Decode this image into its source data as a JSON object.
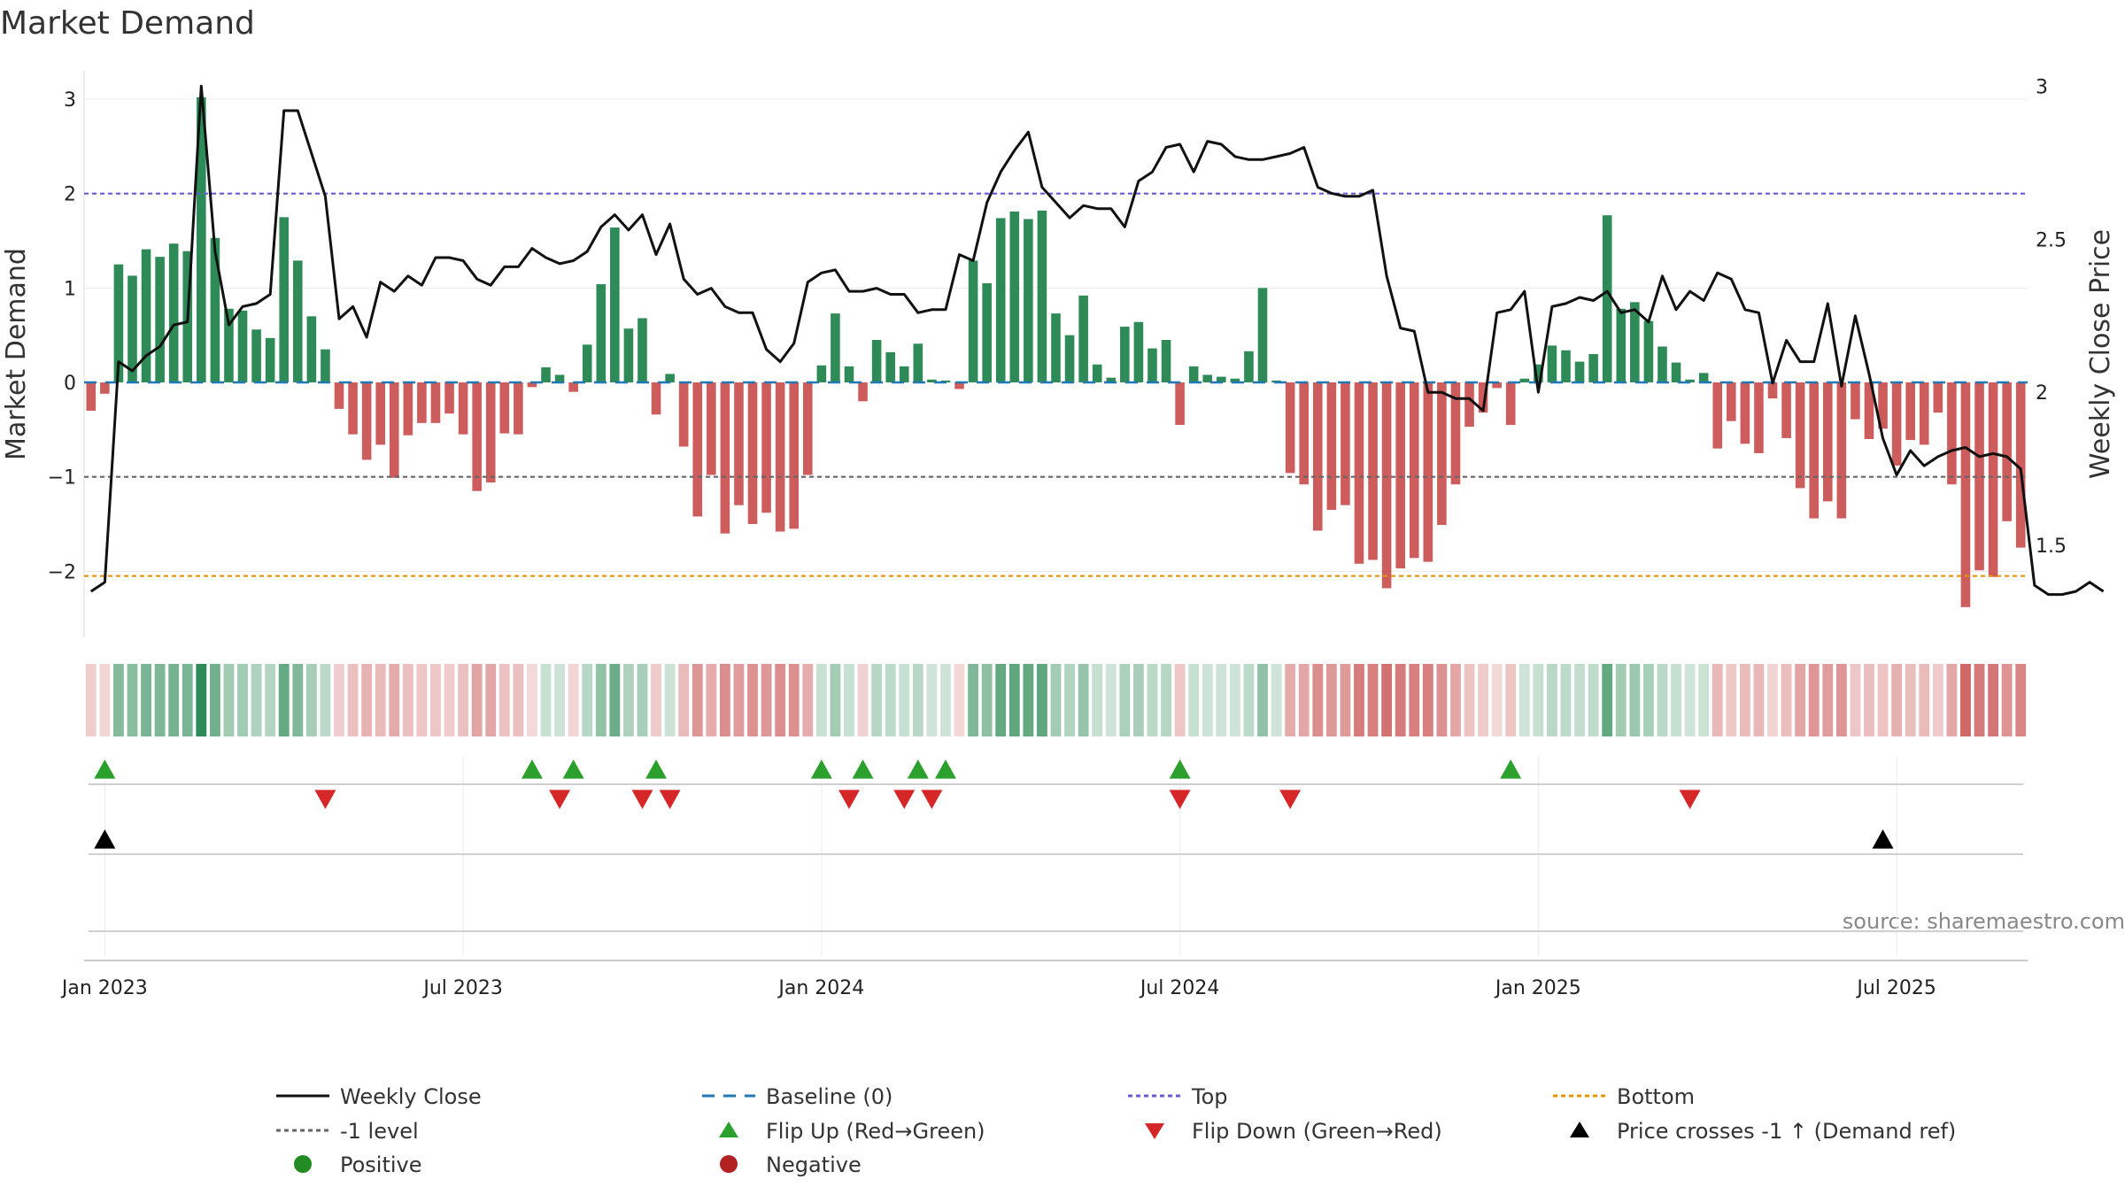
{
  "chart_data": {
    "type": "bar+line",
    "title": "Market Demand",
    "ylabel": "Market Demand",
    "y2label": "Weekly Close Price",
    "ylim": [
      -2.7,
      3.3
    ],
    "y2lim": [
      1.2,
      3.05
    ],
    "yticks": [
      -2,
      -1,
      0,
      1,
      2,
      3
    ],
    "y2ticks": [
      1.5,
      2,
      2.5,
      3
    ],
    "ytick_labels": [
      "−2",
      "−1",
      "0",
      "1",
      "2",
      "3"
    ],
    "y2tick_labels": [
      "1.5",
      "2",
      "2.5",
      "3"
    ],
    "xtick_labels": [
      "Jan 2023",
      "Jul 2023",
      "Jan 2024",
      "Jul 2024",
      "Jan 2025",
      "Jul 2025"
    ],
    "xtick_weeks": [
      1,
      27,
      53,
      79,
      105,
      131
    ],
    "reference_lines": {
      "top": 2.0,
      "minus_one": -1.0,
      "bottom": -2.05,
      "baseline": 0
    },
    "demand": [
      -0.3,
      -0.12,
      1.25,
      1.13,
      1.41,
      1.33,
      1.47,
      1.39,
      3.02,
      1.53,
      0.78,
      0.76,
      0.56,
      0.47,
      1.75,
      1.29,
      0.7,
      0.35,
      -0.28,
      -0.55,
      -0.82,
      -0.66,
      -1.01,
      -0.56,
      -0.43,
      -0.43,
      -0.33,
      -0.55,
      -1.15,
      -1.06,
      -0.54,
      -0.55,
      -0.05,
      0.16,
      0.08,
      -0.1,
      0.4,
      1.04,
      1.64,
      0.57,
      0.68,
      -0.34,
      0.09,
      -0.68,
      -1.42,
      -0.98,
      -1.6,
      -1.3,
      -1.5,
      -1.38,
      -1.58,
      -1.55,
      -0.98,
      0.18,
      0.73,
      0.17,
      -0.2,
      0.45,
      0.32,
      0.17,
      0.41,
      0.03,
      0.02,
      -0.07,
      1.29,
      1.05,
      1.74,
      1.81,
      1.73,
      1.82,
      0.73,
      0.5,
      0.92,
      0.19,
      0.05,
      0.59,
      0.64,
      0.36,
      0.45,
      -0.45,
      0.17,
      0.08,
      0.06,
      0.04,
      0.33,
      1.0,
      0.02,
      -0.96,
      -1.08,
      -1.57,
      -1.35,
      -1.3,
      -1.92,
      -1.88,
      -2.18,
      -1.97,
      -1.86,
      -1.9,
      -1.51,
      -1.08,
      -0.47,
      -0.32,
      -0.06,
      -0.45,
      0.04,
      0.19,
      0.39,
      0.34,
      0.22,
      0.3,
      1.77,
      0.78,
      0.85,
      0.65,
      0.38,
      0.21,
      0.03,
      0.1,
      -0.7,
      -0.41,
      -0.65,
      -0.75,
      -0.17,
      -0.59,
      -1.12,
      -1.44,
      -1.26,
      -1.44,
      -0.39,
      -0.6,
      -0.49,
      -0.88,
      -0.61,
      -0.66,
      -0.32,
      -1.08,
      -2.38,
      -1.99,
      -2.06,
      -1.47,
      -1.75
    ],
    "close": [
      1.35,
      1.38,
      2.1,
      2.07,
      2.12,
      2.15,
      2.22,
      2.23,
      3.0,
      2.46,
      2.22,
      2.28,
      2.29,
      2.32,
      2.92,
      2.92,
      2.78,
      2.64,
      2.24,
      2.28,
      2.18,
      2.36,
      2.33,
      2.38,
      2.35,
      2.44,
      2.44,
      2.43,
      2.37,
      2.35,
      2.41,
      2.41,
      2.47,
      2.44,
      2.42,
      2.43,
      2.46,
      2.54,
      2.58,
      2.53,
      2.58,
      2.45,
      2.55,
      2.37,
      2.32,
      2.34,
      2.28,
      2.26,
      2.26,
      2.14,
      2.1,
      2.16,
      2.36,
      2.39,
      2.4,
      2.33,
      2.33,
      2.34,
      2.32,
      2.32,
      2.26,
      2.27,
      2.27,
      2.45,
      2.43,
      2.62,
      2.72,
      2.79,
      2.85,
      2.67,
      2.62,
      2.57,
      2.61,
      2.6,
      2.6,
      2.54,
      2.69,
      2.72,
      2.8,
      2.81,
      2.72,
      2.82,
      2.81,
      2.77,
      2.76,
      2.76,
      2.77,
      2.78,
      2.8,
      2.67,
      2.65,
      2.64,
      2.64,
      2.66,
      2.38,
      2.21,
      2.2,
      2.0,
      2.0,
      1.98,
      1.98,
      1.94,
      2.26,
      2.27,
      2.33,
      2.0,
      2.28,
      2.29,
      2.31,
      2.3,
      2.33,
      2.26,
      2.27,
      2.23,
      2.38,
      2.27,
      2.33,
      2.3,
      2.39,
      2.37,
      2.27,
      2.26,
      2.03,
      2.17,
      2.1,
      2.1,
      2.29,
      2.02,
      2.25,
      2.06,
      1.85,
      1.73,
      1.81,
      1.76,
      1.79,
      1.81,
      1.82,
      1.79,
      1.8,
      1.79,
      1.75,
      1.37,
      1.34,
      1.34,
      1.35,
      1.38,
      1.35
    ],
    "flip_up_weeks": [
      1,
      32,
      35,
      41,
      53,
      56,
      60,
      62,
      79,
      103
    ],
    "flip_down_weeks": [
      17,
      34,
      40,
      42,
      55,
      59,
      61,
      79,
      87,
      116
    ],
    "price_cross_weeks": [
      1,
      130
    ]
  },
  "source": "source: sharemaestro.com",
  "colors": {
    "positive_bar": "#2e8b57",
    "negative_bar": "#cd5c5c",
    "close_line": "#111111",
    "baseline": "#1f77b4",
    "top_line": "#6a5acd",
    "minus_one_line": "#666666",
    "bottom_line": "#e69500",
    "flip_up": "#2ca02c",
    "flip_down": "#d62728",
    "cross": "#000000",
    "positive_dot": "#228b22",
    "negative_dot": "#b22222"
  },
  "legend": [
    {
      "label": "Weekly Close",
      "kind": "line",
      "color": "#111111"
    },
    {
      "label": "Baseline (0)",
      "kind": "dash",
      "color": "#1f77b4"
    },
    {
      "label": "Top",
      "kind": "dot",
      "color": "#6a5acd"
    },
    {
      "label": "Bottom",
      "kind": "dot",
      "color": "#e69500"
    },
    {
      "label": "-1 level",
      "kind": "dot",
      "color": "#666666"
    },
    {
      "label": "Flip Up (Red→Green)",
      "kind": "tri-up",
      "color": "#2ca02c"
    },
    {
      "label": "Flip Down (Green→Red)",
      "kind": "tri-down",
      "color": "#d62728"
    },
    {
      "label": "Price crosses -1 ↑ (Demand ref)",
      "kind": "tri-up",
      "color": "#000000"
    },
    {
      "label": "Positive",
      "kind": "circle",
      "color": "#228b22"
    },
    {
      "label": "Negative",
      "kind": "circle",
      "color": "#b22222"
    }
  ]
}
